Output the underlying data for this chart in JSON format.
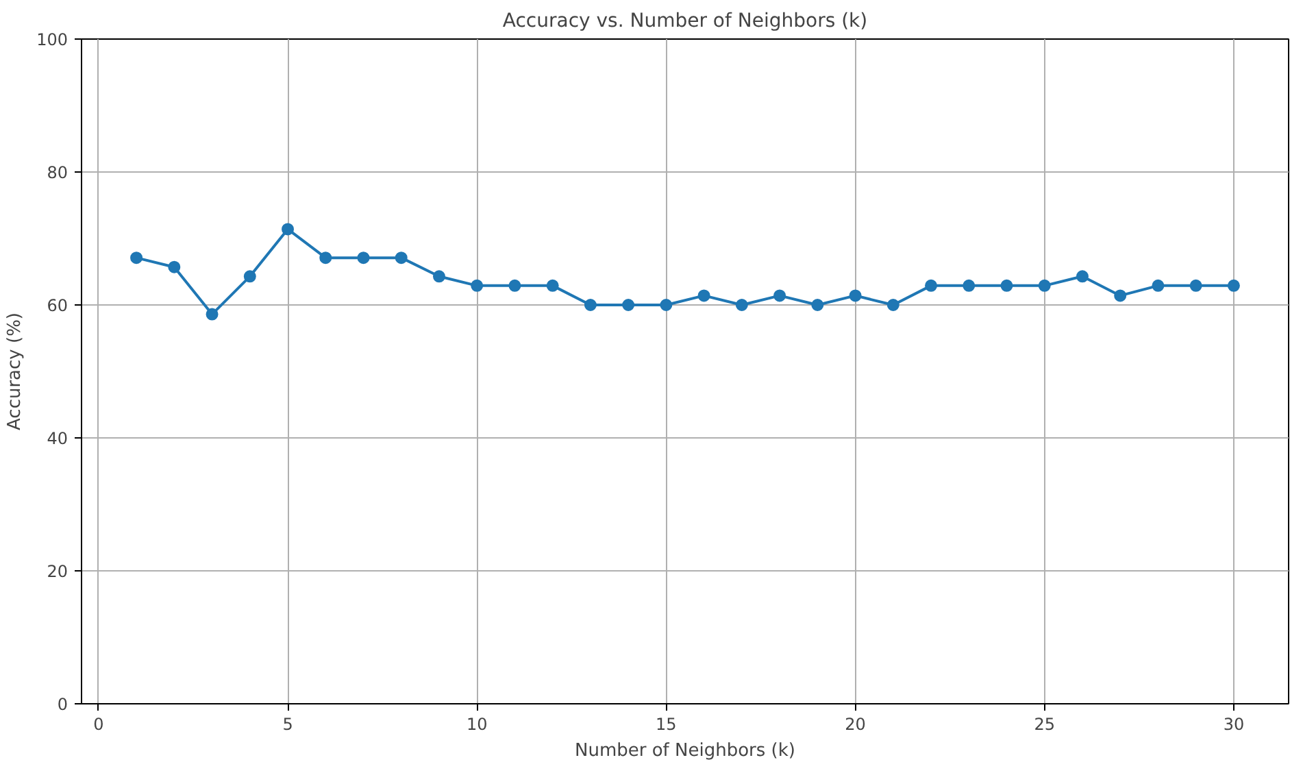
{
  "chart_data": {
    "type": "line",
    "title": "Accuracy vs. Number of Neighbors (k)",
    "xlabel": "Number of Neighbors (k)",
    "ylabel": "Accuracy (%)",
    "x": [
      1,
      2,
      3,
      4,
      5,
      6,
      7,
      8,
      9,
      10,
      11,
      12,
      13,
      14,
      15,
      16,
      17,
      18,
      19,
      20,
      21,
      22,
      23,
      24,
      25,
      26,
      27,
      28,
      29,
      30
    ],
    "series": [
      {
        "color": "#1f77b4",
        "values": [
          67.1,
          65.7,
          58.6,
          64.3,
          71.4,
          67.1,
          67.1,
          67.1,
          64.3,
          62.9,
          62.9,
          62.9,
          60.0,
          60.0,
          60.0,
          61.4,
          60.0,
          61.4,
          60.0,
          61.4,
          60.0,
          62.9,
          62.9,
          62.9,
          62.9,
          64.3,
          61.4,
          62.9,
          62.9,
          62.9
        ]
      }
    ],
    "xlim": [
      -0.45,
      31.45
    ],
    "ylim": [
      0,
      100
    ],
    "xticks": [
      0,
      5,
      10,
      15,
      20,
      25,
      30
    ],
    "yticks": [
      0,
      20,
      40,
      60,
      80,
      100
    ],
    "grid": true,
    "marker": "circle",
    "line_style": "solid"
  }
}
